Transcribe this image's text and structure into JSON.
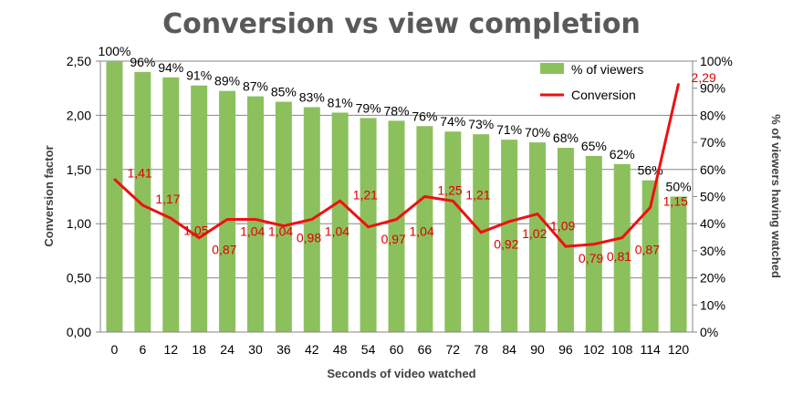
{
  "chart_data": {
    "type": "bar+line",
    "title": "Conversion vs view completion",
    "xlabel": "Seconds of video watched",
    "ylabel": "Conversion factor",
    "y2label": "% of viewers having watched",
    "categories": [
      "0",
      "6",
      "12",
      "18",
      "24",
      "30",
      "36",
      "42",
      "48",
      "54",
      "60",
      "66",
      "72",
      "78",
      "84",
      "90",
      "96",
      "102",
      "108",
      "114",
      "120"
    ],
    "ylim": [
      0,
      2.5
    ],
    "yticks": [
      "0,00",
      "0,50",
      "1,00",
      "1,50",
      "2,00",
      "2,50"
    ],
    "y2lim": [
      0,
      100
    ],
    "y2ticks": [
      "0%",
      "10%",
      "20%",
      "30%",
      "40%",
      "50%",
      "60%",
      "70%",
      "80%",
      "90%",
      "100%"
    ],
    "legend_position": "top-right",
    "series": [
      {
        "name": "% of viewers",
        "type": "bar",
        "axis": "right",
        "color": "#8cc05c",
        "values": [
          100,
          96,
          94,
          91,
          89,
          87,
          85,
          83,
          81,
          79,
          78,
          76,
          74,
          73,
          71,
          70,
          68,
          65,
          62,
          56,
          50
        ],
        "labels": [
          "100%",
          "96%",
          "94%",
          "91%",
          "89%",
          "87%",
          "85%",
          "83%",
          "81%",
          "79%",
          "78%",
          "76%",
          "74%",
          "73%",
          "71%",
          "70%",
          "68%",
          "65%",
          "62%",
          "56%",
          "50%"
        ]
      },
      {
        "name": "Conversion",
        "type": "line",
        "axis": "left",
        "color": "#ee1111",
        "values": [
          1.41,
          1.17,
          1.05,
          0.87,
          1.04,
          1.04,
          0.98,
          1.04,
          1.21,
          0.97,
          1.04,
          1.25,
          1.21,
          0.92,
          1.02,
          1.09,
          0.79,
          0.81,
          0.87,
          1.15,
          2.29
        ],
        "labels": [
          "1,41",
          "1,17",
          "1,05",
          "0,87",
          "1,04",
          "1,04",
          "0,98",
          "1,04",
          "1,21",
          "0,97",
          "1,04",
          "1,25",
          "1,21",
          "0,92",
          "1,02",
          "1,09",
          "0,79",
          "0,81",
          "0,87",
          "1,15",
          "2,29"
        ]
      }
    ]
  }
}
